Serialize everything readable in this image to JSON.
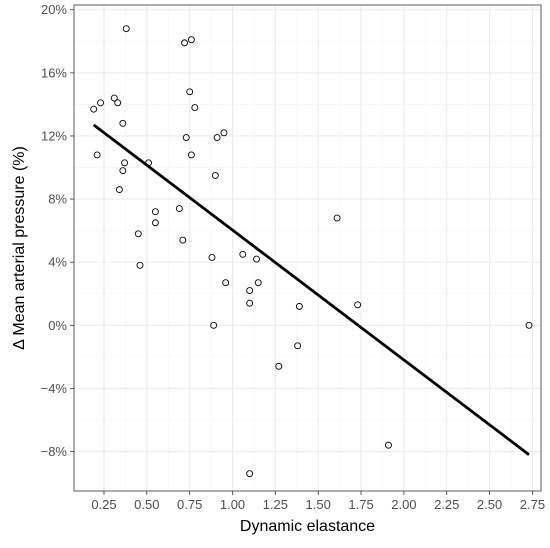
{
  "chart_data": {
    "type": "scatter",
    "title": "",
    "xlabel": "Dynamic elastance",
    "ylabel": "Δ Mean arterial pressure (%)",
    "xlim": [
      0.075,
      2.8
    ],
    "ylim": [
      -10.5,
      20.3
    ],
    "x_ticks": [
      0.25,
      0.5,
      0.75,
      1.0,
      1.25,
      1.5,
      1.75,
      2.0,
      2.25,
      2.5,
      2.75
    ],
    "x_tick_labels": [
      "0.25",
      "0.50",
      "0.75",
      "1.00",
      "1.25",
      "1.50",
      "1.75",
      "2.00",
      "2.25",
      "2.50",
      "2.75"
    ],
    "y_ticks": [
      -8,
      -4,
      0,
      4,
      8,
      12,
      16,
      20
    ],
    "y_tick_labels": [
      "−8%",
      "−4%",
      "0%",
      "4%",
      "8%",
      "12%",
      "16%",
      "20%"
    ],
    "grid": true,
    "points": [
      {
        "x": 0.38,
        "y": 18.8
      },
      {
        "x": 0.72,
        "y": 17.9
      },
      {
        "x": 0.76,
        "y": 18.1
      },
      {
        "x": 0.75,
        "y": 14.8
      },
      {
        "x": 0.78,
        "y": 13.8
      },
      {
        "x": 0.19,
        "y": 13.7
      },
      {
        "x": 0.23,
        "y": 14.1
      },
      {
        "x": 0.31,
        "y": 14.4
      },
      {
        "x": 0.33,
        "y": 14.1
      },
      {
        "x": 0.36,
        "y": 12.8
      },
      {
        "x": 0.73,
        "y": 11.9
      },
      {
        "x": 0.91,
        "y": 11.9
      },
      {
        "x": 0.95,
        "y": 12.2
      },
      {
        "x": 0.21,
        "y": 10.8
      },
      {
        "x": 0.76,
        "y": 10.8
      },
      {
        "x": 0.37,
        "y": 10.3
      },
      {
        "x": 0.51,
        "y": 10.3
      },
      {
        "x": 0.36,
        "y": 9.8
      },
      {
        "x": 0.9,
        "y": 9.5
      },
      {
        "x": 0.34,
        "y": 8.6
      },
      {
        "x": 0.69,
        "y": 7.4
      },
      {
        "x": 0.55,
        "y": 7.2
      },
      {
        "x": 0.55,
        "y": 6.5
      },
      {
        "x": 1.61,
        "y": 6.8
      },
      {
        "x": 0.45,
        "y": 5.8
      },
      {
        "x": 0.71,
        "y": 5.4
      },
      {
        "x": 0.46,
        "y": 3.8
      },
      {
        "x": 0.88,
        "y": 4.3
      },
      {
        "x": 1.06,
        "y": 4.5
      },
      {
        "x": 1.14,
        "y": 4.2
      },
      {
        "x": 0.96,
        "y": 2.7
      },
      {
        "x": 1.15,
        "y": 2.7
      },
      {
        "x": 1.1,
        "y": 2.2
      },
      {
        "x": 1.1,
        "y": 1.4
      },
      {
        "x": 1.39,
        "y": 1.2
      },
      {
        "x": 1.73,
        "y": 1.3
      },
      {
        "x": 0.89,
        "y": 0.0
      },
      {
        "x": 2.73,
        "y": 0.0
      },
      {
        "x": 1.38,
        "y": -1.3
      },
      {
        "x": 1.27,
        "y": -2.6
      },
      {
        "x": 1.91,
        "y": -7.6
      },
      {
        "x": 1.1,
        "y": -9.4
      }
    ],
    "trend_line": {
      "x": [
        0.19,
        2.73
      ],
      "y": [
        12.7,
        -8.2
      ]
    },
    "colors": {
      "line": "#000000",
      "point_stroke": "#000000",
      "grid_major": "#ebebeb",
      "grid_minor": "#f5f5f5",
      "panel_border": "#333333"
    }
  }
}
